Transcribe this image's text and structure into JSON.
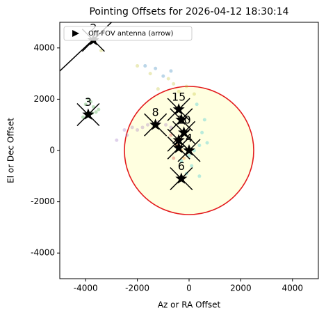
{
  "chart_data": {
    "type": "scatter",
    "title": "Pointing Offsets for 2026-04-12 18:30:14",
    "xlabel": "Az or RA Offset",
    "ylabel": "El or Dec Offset",
    "xlim": [
      -5000,
      5000
    ],
    "ylim": [
      -5000,
      5000
    ],
    "xticks": [
      -4000,
      -2000,
      0,
      2000,
      4000
    ],
    "yticks": [
      -4000,
      -2000,
      0,
      2000,
      4000
    ],
    "legend": {
      "label": "Off-FOV antenna (arrow)",
      "loc": "upper left"
    },
    "fov_center": {
      "x": 0,
      "y": 0
    },
    "fov_radius": 2500,
    "fov_color": "#e31a1c",
    "fov_fill": "#ffffe0",
    "arrow": {
      "x": [
        -5000,
        -3000
      ],
      "y": [
        3100,
        5000
      ]
    },
    "samples": [
      {
        "color": "#2ca02c",
        "x": [
          -3800,
          -3700,
          -4000,
          -3600,
          -3900,
          -3500,
          -4100,
          -3750
        ],
        "y": [
          1900,
          1700,
          1800,
          1500,
          2000,
          1600,
          1300,
          1450
        ]
      },
      {
        "color": "#9467bd",
        "x": [
          -2800,
          -2500,
          -2200,
          -2000,
          -1800,
          -1600,
          -1200,
          -900,
          -700,
          -2400
        ],
        "y": [
          400,
          800,
          900,
          800,
          900,
          1000,
          1100,
          1000,
          900,
          600
        ]
      },
      {
        "color": "#17becf",
        "x": [
          -300,
          0,
          200,
          400,
          500,
          600,
          300,
          100,
          -100,
          700,
          400
        ],
        "y": [
          -400,
          -200,
          0,
          200,
          700,
          1200,
          1800,
          -600,
          -900,
          300,
          -1000
        ]
      },
      {
        "color": "#bcbd22",
        "x": [
          -1500,
          -1200,
          -800,
          -600,
          -400,
          -100,
          200,
          -3400,
          -2000
        ],
        "y": [
          3000,
          2400,
          2800,
          2600,
          2300,
          2500,
          2200,
          3900,
          3300
        ]
      },
      {
        "color": "#1f77b4",
        "x": [
          -1700,
          -1300,
          -700,
          -1000
        ],
        "y": [
          3300,
          3200,
          3100,
          2900
        ]
      },
      {
        "color": "#d62728",
        "x": [
          -700,
          -500,
          -400,
          -600
        ],
        "y": [
          600,
          400,
          200,
          -300
        ]
      },
      {
        "color": "#ff7f0e",
        "x": [
          -500,
          -300,
          -200
        ],
        "y": [
          200,
          0,
          -300
        ]
      }
    ],
    "antennas": {
      "x": [
        -3700,
        -3900,
        -1300,
        -400,
        -300,
        -200,
        -400,
        -400,
        0,
        -300
      ],
      "y": [
        4300,
        1400,
        1000,
        1600,
        1200,
        700,
        400,
        100,
        0,
        -1100
      ],
      "labels": [
        "2",
        "3",
        "8",
        "15",
        null,
        "10",
        null,
        null,
        "4",
        "6"
      ]
    }
  }
}
